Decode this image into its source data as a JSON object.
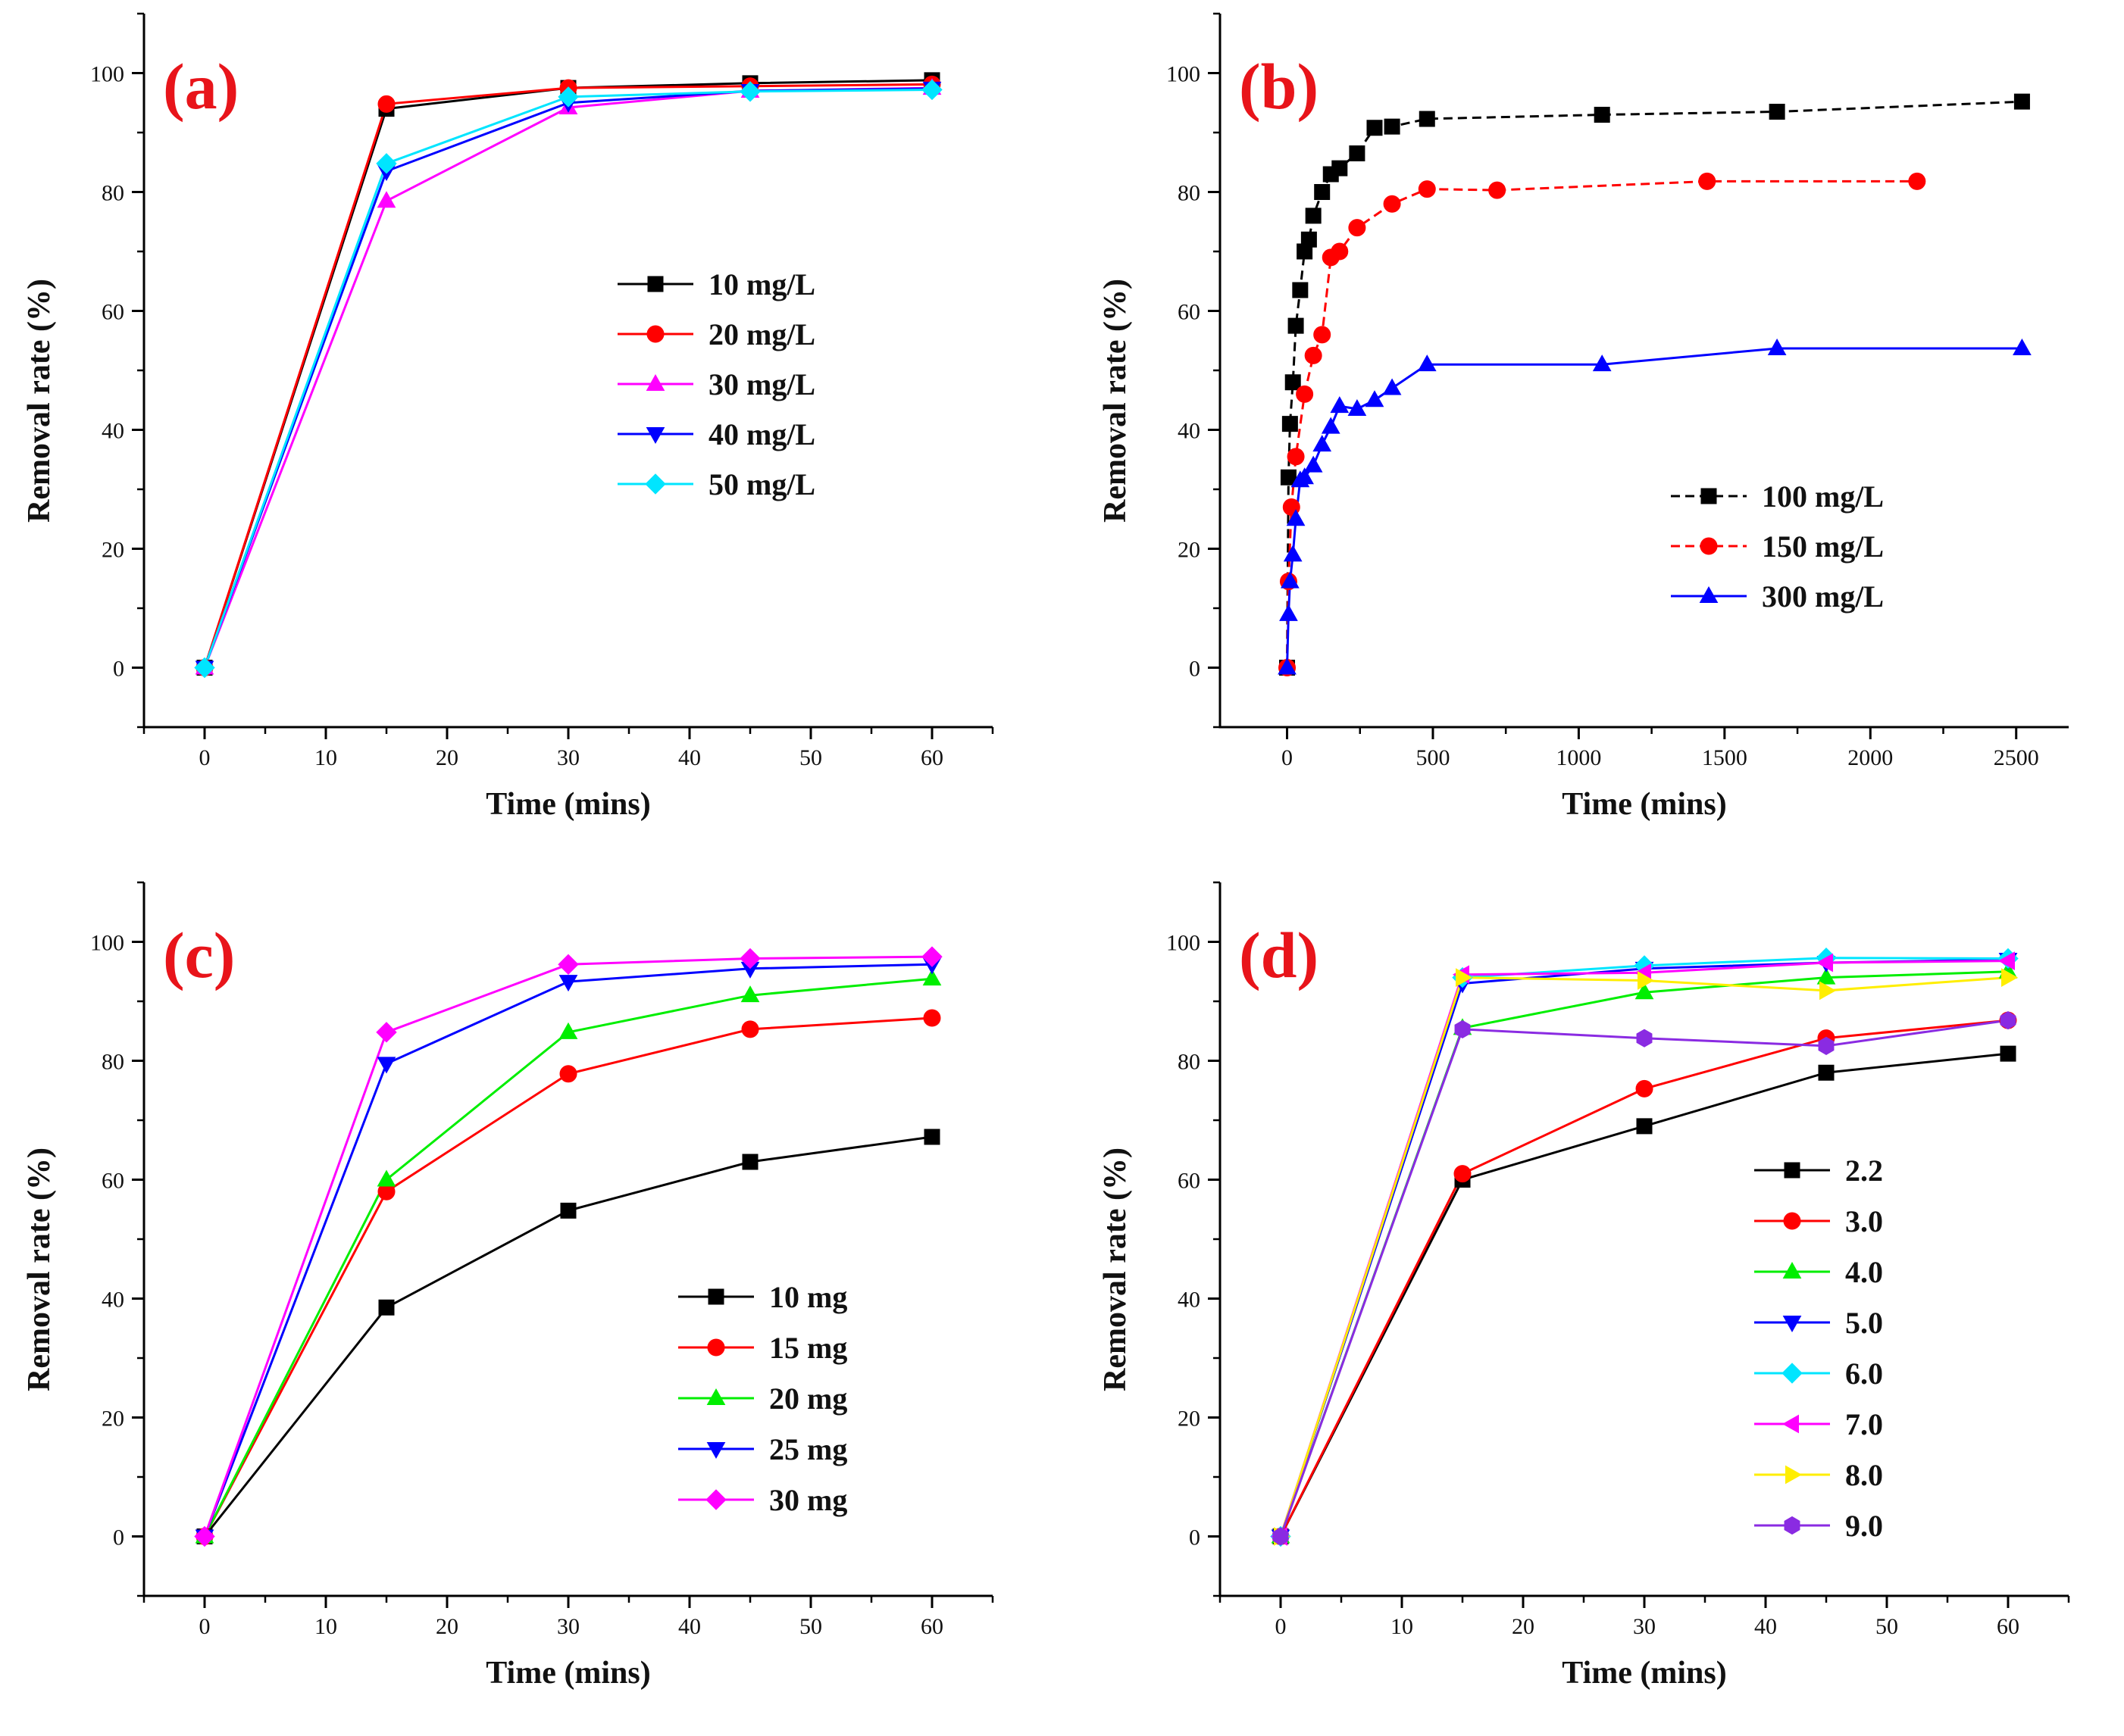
{
  "chart_data": [
    {
      "type": "line",
      "panel_label": "(a)",
      "xlabel": "Time (mins)",
      "ylabel": "Removal rate (%)",
      "xlim": [
        -5,
        65
      ],
      "ylim": [
        -10,
        110
      ],
      "xticks": [
        0,
        10,
        20,
        30,
        40,
        50,
        60
      ],
      "yticks": [
        0,
        20,
        40,
        60,
        80,
        100
      ],
      "legend_position": "center-right",
      "series": [
        {
          "name": "10 mg/L",
          "color": "#000000",
          "marker": "square",
          "x": [
            0,
            15,
            30,
            45,
            60
          ],
          "y": [
            0,
            94,
            97.5,
            98.3,
            98.8
          ]
        },
        {
          "name": "20 mg/L",
          "color": "#ff0000",
          "marker": "circle",
          "x": [
            0,
            15,
            30,
            45,
            60
          ],
          "y": [
            0,
            94.8,
            97.5,
            97.8,
            98.1
          ]
        },
        {
          "name": "30 mg/L",
          "color": "#ff00ff",
          "marker": "triangle-up",
          "x": [
            0,
            15,
            30,
            45,
            60
          ],
          "y": [
            0,
            78.5,
            94.2,
            97,
            97.5
          ]
        },
        {
          "name": "40 mg/L",
          "color": "#0000ff",
          "marker": "triangle-down",
          "x": [
            0,
            15,
            30,
            45,
            60
          ],
          "y": [
            0,
            83.5,
            95,
            97,
            97.4
          ]
        },
        {
          "name": "50 mg/L",
          "color": "#00e5ff",
          "marker": "diamond",
          "x": [
            0,
            15,
            30,
            45,
            60
          ],
          "y": [
            0,
            84.8,
            96,
            96.9,
            97.2
          ]
        }
      ]
    },
    {
      "type": "line",
      "panel_label": "(b)",
      "xlabel": "Time (mins)",
      "ylabel": "Removal rate (%)",
      "xlim": [
        -230,
        2680
      ],
      "ylim": [
        -10,
        110
      ],
      "xticks": [
        0,
        500,
        1000,
        1500,
        2000,
        2500
      ],
      "yticks": [
        0,
        20,
        40,
        60,
        80,
        100
      ],
      "legend_position": "lower-right",
      "series": [
        {
          "name": "100 mg/L",
          "color": "#000000",
          "marker": "square",
          "line": "dashed",
          "x": [
            0,
            5,
            10,
            20,
            30,
            45,
            60,
            75,
            90,
            120,
            150,
            180,
            240,
            300,
            360,
            480,
            1080,
            1680,
            2520
          ],
          "y": [
            0,
            32,
            41,
            48,
            57.5,
            63.5,
            70,
            72,
            76,
            80,
            83,
            84,
            86.5,
            90.8,
            91,
            92.3,
            93,
            93.5,
            95.2
          ]
        },
        {
          "name": "150 mg/L",
          "color": "#ff0000",
          "marker": "circle",
          "line": "dashed",
          "x": [
            0,
            5,
            15,
            30,
            60,
            90,
            120,
            150,
            180,
            240,
            360,
            480,
            720,
            1440,
            2160
          ],
          "y": [
            0,
            14.5,
            27,
            35.5,
            46,
            52.5,
            56,
            69,
            70,
            74,
            78,
            80.5,
            80.3,
            81.8,
            81.8
          ]
        },
        {
          "name": "300 mg/L",
          "color": "#0000ff",
          "marker": "triangle-up",
          "line": "solid",
          "x": [
            0,
            5,
            10,
            20,
            30,
            45,
            60,
            90,
            120,
            150,
            180,
            240,
            300,
            360,
            480,
            1080,
            1680,
            2520
          ],
          "y": [
            0,
            9,
            14.5,
            19,
            25,
            31.5,
            32,
            34,
            37.5,
            40.5,
            44,
            43.5,
            45,
            47,
            51,
            51,
            53.7,
            53.7
          ]
        }
      ]
    },
    {
      "type": "line",
      "panel_label": "(c)",
      "xlabel": "Time (mins)",
      "ylabel": "Removal rate (%)",
      "xlim": [
        -5,
        65
      ],
      "ylim": [
        -10,
        110
      ],
      "xticks": [
        0,
        10,
        20,
        30,
        40,
        50,
        60
      ],
      "yticks": [
        0,
        20,
        40,
        60,
        80,
        100
      ],
      "legend_position": "lower-right",
      "series": [
        {
          "name": "10 mg",
          "color": "#000000",
          "marker": "square",
          "x": [
            0,
            15,
            30,
            45,
            60
          ],
          "y": [
            0,
            38.5,
            54.8,
            63,
            67.2
          ]
        },
        {
          "name": "15 mg",
          "color": "#ff0000",
          "marker": "circle",
          "x": [
            0,
            15,
            30,
            45,
            60
          ],
          "y": [
            0,
            58,
            77.8,
            85.3,
            87.2
          ]
        },
        {
          "name": "20 mg",
          "color": "#00ee00",
          "marker": "triangle-up",
          "x": [
            0,
            15,
            30,
            45,
            60
          ],
          "y": [
            0,
            60,
            84.8,
            91,
            93.8
          ]
        },
        {
          "name": "25 mg",
          "color": "#0000ff",
          "marker": "triangle-down",
          "x": [
            0,
            15,
            30,
            45,
            60
          ],
          "y": [
            0,
            79.5,
            93.3,
            95.5,
            96.2
          ]
        },
        {
          "name": "30 mg",
          "color": "#ff00ff",
          "marker": "diamond",
          "x": [
            0,
            15,
            30,
            45,
            60
          ],
          "y": [
            0,
            84.8,
            96.2,
            97.2,
            97.5
          ]
        }
      ]
    },
    {
      "type": "line",
      "panel_label": "(d)",
      "xlabel": "Time (mins)",
      "ylabel": "Removal rate (%)",
      "xlim": [
        -5,
        65
      ],
      "ylim": [
        -10,
        110
      ],
      "xticks": [
        0,
        10,
        20,
        30,
        40,
        50,
        60
      ],
      "yticks": [
        0,
        20,
        40,
        60,
        80,
        100
      ],
      "legend_position": "lower-right",
      "series": [
        {
          "name": "2.2",
          "color": "#000000",
          "marker": "square",
          "x": [
            0,
            15,
            30,
            45,
            60
          ],
          "y": [
            0,
            60,
            69,
            78,
            81.2
          ]
        },
        {
          "name": "3.0",
          "color": "#ff0000",
          "marker": "circle",
          "x": [
            0,
            15,
            30,
            45,
            60
          ],
          "y": [
            0,
            61,
            75.3,
            83.8,
            86.8
          ]
        },
        {
          "name": "4.0",
          "color": "#00ee00",
          "marker": "triangle-up",
          "x": [
            0,
            15,
            30,
            45,
            60
          ],
          "y": [
            0,
            85.5,
            91.5,
            94,
            95
          ]
        },
        {
          "name": "5.0",
          "color": "#0000ff",
          "marker": "triangle-down",
          "x": [
            0,
            15,
            30,
            45,
            60
          ],
          "y": [
            0,
            93,
            95.5,
            96.5,
            97
          ]
        },
        {
          "name": "6.0",
          "color": "#00e5ff",
          "marker": "diamond",
          "x": [
            0,
            15,
            30,
            45,
            60
          ],
          "y": [
            0,
            94,
            96,
            97.3,
            97.2
          ]
        },
        {
          "name": "7.0",
          "color": "#ff00ff",
          "marker": "triangle-left",
          "x": [
            0,
            15,
            30,
            45,
            60
          ],
          "y": [
            0,
            94.5,
            94.8,
            96.5,
            96.8
          ]
        },
        {
          "name": "8.0",
          "color": "#ffee00",
          "marker": "triangle-right",
          "x": [
            0,
            15,
            30,
            45,
            60
          ],
          "y": [
            0,
            94,
            93.5,
            91.8,
            94
          ]
        },
        {
          "name": "9.0",
          "color": "#8a2be2",
          "marker": "hexagon",
          "x": [
            0,
            15,
            30,
            45,
            60
          ],
          "y": [
            0,
            85.3,
            83.8,
            82.5,
            86.8
          ]
        }
      ]
    }
  ]
}
